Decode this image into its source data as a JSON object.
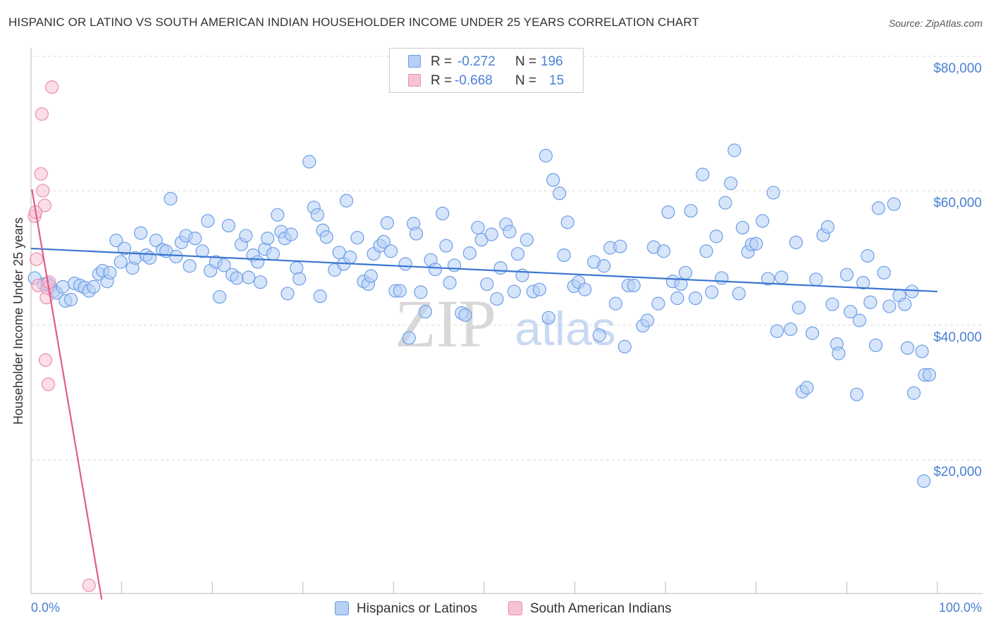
{
  "title": "HISPANIC OR LATINO VS SOUTH AMERICAN INDIAN HOUSEHOLDER INCOME UNDER 25 YEARS CORRELATION CHART",
  "source": "Source: ZipAtlas.com",
  "watermark": {
    "zip": "ZIP",
    "atlas": "atlas"
  },
  "stats": [
    {
      "r_label": "R = ",
      "r_value": "-0.272",
      "n_label": "N = ",
      "n_value": "196",
      "color": "#6d9ee6",
      "fill": "#b7cff5"
    },
    {
      "r_label": "R = ",
      "r_value": "-0.668",
      "n_label": "N = ",
      "n_value": "15",
      "color": "#e98fab",
      "fill": "#f7c3d3"
    }
  ],
  "legend": [
    {
      "label": "Hispanics or Latinos",
      "color": "#6d9ee6",
      "fill": "#b7cff5"
    },
    {
      "label": "South American Indians",
      "color": "#e98fab",
      "fill": "#f7c3d3"
    }
  ],
  "chart_data": {
    "type": "scatter",
    "title": "HISPANIC OR LATINO VS SOUTH AMERICAN INDIAN HOUSEHOLDER INCOME UNDER 25 YEARS CORRELATION CHART",
    "xlabel": "",
    "ylabel": "Householder Income Under 25 years",
    "xlim": [
      0,
      100
    ],
    "ylim": [
      1000,
      83000
    ],
    "x_tick_labels": [
      "0.0%",
      "100.0%"
    ],
    "y_ticks": [
      {
        "value": 20000,
        "label": "$20,000"
      },
      {
        "value": 40000,
        "label": "$40,000"
      },
      {
        "value": 60000,
        "label": "$60,000"
      },
      {
        "value": 80000,
        "label": "$80,000"
      }
    ],
    "grid": true,
    "series": [
      {
        "name": "Hispanics or Latinos",
        "color": "#6d9ee6",
        "fill": "#b7cff5",
        "line_color": "#3a76d0",
        "trend": [
          [
            0,
            53200
          ],
          [
            100,
            46800
          ]
        ],
        "points": [
          [
            0.4,
            48800
          ],
          [
            1.4,
            47900
          ],
          [
            1.8,
            48000
          ],
          [
            2.1,
            47600
          ],
          [
            2.5,
            46900
          ],
          [
            2.8,
            46600
          ],
          [
            3.5,
            47500
          ],
          [
            3.8,
            45400
          ],
          [
            4.4,
            45600
          ],
          [
            4.8,
            48000
          ],
          [
            5.4,
            47700
          ],
          [
            5.9,
            47400
          ],
          [
            6.4,
            46900
          ],
          [
            6.9,
            47500
          ],
          [
            7.5,
            49400
          ],
          [
            7.9,
            49900
          ],
          [
            8.4,
            48300
          ],
          [
            8.7,
            49600
          ],
          [
            9.4,
            54400
          ],
          [
            9.9,
            51200
          ],
          [
            10.3,
            53200
          ],
          [
            11.2,
            50300
          ],
          [
            11.5,
            51800
          ],
          [
            12.1,
            55500
          ],
          [
            12.7,
            52200
          ],
          [
            13.1,
            51800
          ],
          [
            13.8,
            54400
          ],
          [
            14.5,
            53000
          ],
          [
            14.9,
            52800
          ],
          [
            15.4,
            60600
          ],
          [
            16,
            52000
          ],
          [
            16.6,
            54100
          ],
          [
            17.1,
            55100
          ],
          [
            17.5,
            50600
          ],
          [
            18.1,
            54700
          ],
          [
            18.9,
            52800
          ],
          [
            19.5,
            57300
          ],
          [
            19.8,
            49900
          ],
          [
            20.4,
            51200
          ],
          [
            20.8,
            46000
          ],
          [
            21.3,
            50700
          ],
          [
            21.8,
            56600
          ],
          [
            22.2,
            49300
          ],
          [
            22.7,
            48800
          ],
          [
            23.2,
            53800
          ],
          [
            23.7,
            55100
          ],
          [
            24,
            48900
          ],
          [
            24.5,
            52200
          ],
          [
            25,
            51200
          ],
          [
            25.3,
            48200
          ],
          [
            25.8,
            53100
          ],
          [
            26.1,
            54700
          ],
          [
            26.7,
            52400
          ],
          [
            27.2,
            58200
          ],
          [
            27.6,
            55700
          ],
          [
            28,
            54700
          ],
          [
            28.3,
            46500
          ],
          [
            28.7,
            55300
          ],
          [
            29.3,
            50300
          ],
          [
            29.6,
            48700
          ],
          [
            30.7,
            66100
          ],
          [
            31.2,
            59300
          ],
          [
            31.6,
            58200
          ],
          [
            31.9,
            46100
          ],
          [
            32.2,
            55900
          ],
          [
            32.6,
            54900
          ],
          [
            33.5,
            50000
          ],
          [
            34,
            52600
          ],
          [
            34.5,
            50900
          ],
          [
            34.8,
            60300
          ],
          [
            35.2,
            51900
          ],
          [
            36,
            54800
          ],
          [
            36.7,
            48300
          ],
          [
            37.2,
            47900
          ],
          [
            37.5,
            49100
          ],
          [
            37.8,
            52400
          ],
          [
            38.5,
            53600
          ],
          [
            38.9,
            54200
          ],
          [
            39.3,
            57000
          ],
          [
            39.7,
            52800
          ],
          [
            40.2,
            46900
          ],
          [
            40.7,
            46900
          ],
          [
            41.3,
            50900
          ],
          [
            41.7,
            39900
          ],
          [
            42.2,
            56900
          ],
          [
            42.5,
            55400
          ],
          [
            43,
            46700
          ],
          [
            43.5,
            43800
          ],
          [
            44.1,
            51500
          ],
          [
            44.6,
            50100
          ],
          [
            45.4,
            58400
          ],
          [
            45.8,
            53600
          ],
          [
            46.2,
            48100
          ],
          [
            46.7,
            50700
          ],
          [
            47.5,
            43600
          ],
          [
            47.9,
            43300
          ],
          [
            48.4,
            52500
          ],
          [
            49.3,
            56300
          ],
          [
            49.7,
            54500
          ],
          [
            50.3,
            47900
          ],
          [
            50.8,
            55300
          ],
          [
            51.4,
            45700
          ],
          [
            51.8,
            50300
          ],
          [
            52.4,
            56800
          ],
          [
            52.8,
            55700
          ],
          [
            53.3,
            46800
          ],
          [
            53.7,
            52400
          ],
          [
            54.2,
            49200
          ],
          [
            54.7,
            54500
          ],
          [
            55.4,
            46800
          ],
          [
            56.1,
            47100
          ],
          [
            56.8,
            67000
          ],
          [
            57.1,
            42900
          ],
          [
            57.6,
            63400
          ],
          [
            58.3,
            61400
          ],
          [
            58.8,
            52200
          ],
          [
            59.2,
            57100
          ],
          [
            59.9,
            47600
          ],
          [
            60.4,
            48200
          ],
          [
            61.1,
            47100
          ],
          [
            62.1,
            51200
          ],
          [
            62.7,
            40300
          ],
          [
            63.2,
            50600
          ],
          [
            63.9,
            53300
          ],
          [
            64.5,
            45000
          ],
          [
            65,
            53500
          ],
          [
            65.5,
            38600
          ],
          [
            65.9,
            47700
          ],
          [
            66.5,
            47700
          ],
          [
            67.5,
            41700
          ],
          [
            68,
            42500
          ],
          [
            68.7,
            53400
          ],
          [
            69.2,
            45000
          ],
          [
            69.8,
            52800
          ],
          [
            70.3,
            58600
          ],
          [
            70.8,
            48300
          ],
          [
            71.3,
            45800
          ],
          [
            71.7,
            47900
          ],
          [
            72.2,
            49600
          ],
          [
            72.8,
            58800
          ],
          [
            73.3,
            45800
          ],
          [
            74.1,
            64200
          ],
          [
            74.5,
            52800
          ],
          [
            75.1,
            46700
          ],
          [
            75.6,
            55000
          ],
          [
            76.2,
            48800
          ],
          [
            76.6,
            60000
          ],
          [
            77.2,
            62900
          ],
          [
            77.6,
            67800
          ],
          [
            78.1,
            46500
          ],
          [
            78.5,
            56300
          ],
          [
            79.1,
            52700
          ],
          [
            79.5,
            53800
          ],
          [
            80,
            53900
          ],
          [
            80.7,
            57300
          ],
          [
            81.3,
            48700
          ],
          [
            81.9,
            61500
          ],
          [
            82.3,
            40900
          ],
          [
            82.8,
            48900
          ],
          [
            83.8,
            41200
          ],
          [
            84.4,
            54100
          ],
          [
            84.7,
            44400
          ],
          [
            85.1,
            31900
          ],
          [
            85.6,
            32500
          ],
          [
            86.2,
            40600
          ],
          [
            86.6,
            48600
          ],
          [
            87.4,
            55200
          ],
          [
            87.9,
            56400
          ],
          [
            88.4,
            44900
          ],
          [
            88.9,
            39000
          ],
          [
            89.1,
            37600
          ],
          [
            90,
            49300
          ],
          [
            90.4,
            43800
          ],
          [
            91.1,
            31500
          ],
          [
            91.4,
            42500
          ],
          [
            91.8,
            48100
          ],
          [
            92.3,
            52100
          ],
          [
            92.6,
            45200
          ],
          [
            93.2,
            38800
          ],
          [
            93.5,
            59200
          ],
          [
            94.1,
            49600
          ],
          [
            94.7,
            44600
          ],
          [
            95.2,
            59800
          ],
          [
            95.8,
            46200
          ],
          [
            96.4,
            44900
          ],
          [
            96.7,
            38400
          ],
          [
            97.2,
            46800
          ],
          [
            97.4,
            31700
          ],
          [
            98.3,
            37900
          ],
          [
            98.6,
            34400
          ],
          [
            99.1,
            34400
          ],
          [
            98.5,
            18600
          ]
        ]
      },
      {
        "name": "South American Indians",
        "color": "#e98fab",
        "fill": "#f7c3d3",
        "line_color": "#e05c8a",
        "trend": [
          [
            0.1,
            62000
          ],
          [
            7.8,
            1000
          ]
        ],
        "points": [
          [
            0.4,
            58000
          ],
          [
            0.6,
            51600
          ],
          [
            0.8,
            47700
          ],
          [
            1.1,
            64300
          ],
          [
            1.2,
            73200
          ],
          [
            1.3,
            61800
          ],
          [
            1.5,
            59600
          ],
          [
            1.6,
            36600
          ],
          [
            1.7,
            45900
          ],
          [
            1.8,
            47300
          ],
          [
            2,
            48200
          ],
          [
            1.9,
            33000
          ],
          [
            2.3,
            77200
          ],
          [
            0.5,
            58600
          ],
          [
            6.4,
            3100
          ]
        ]
      }
    ]
  }
}
